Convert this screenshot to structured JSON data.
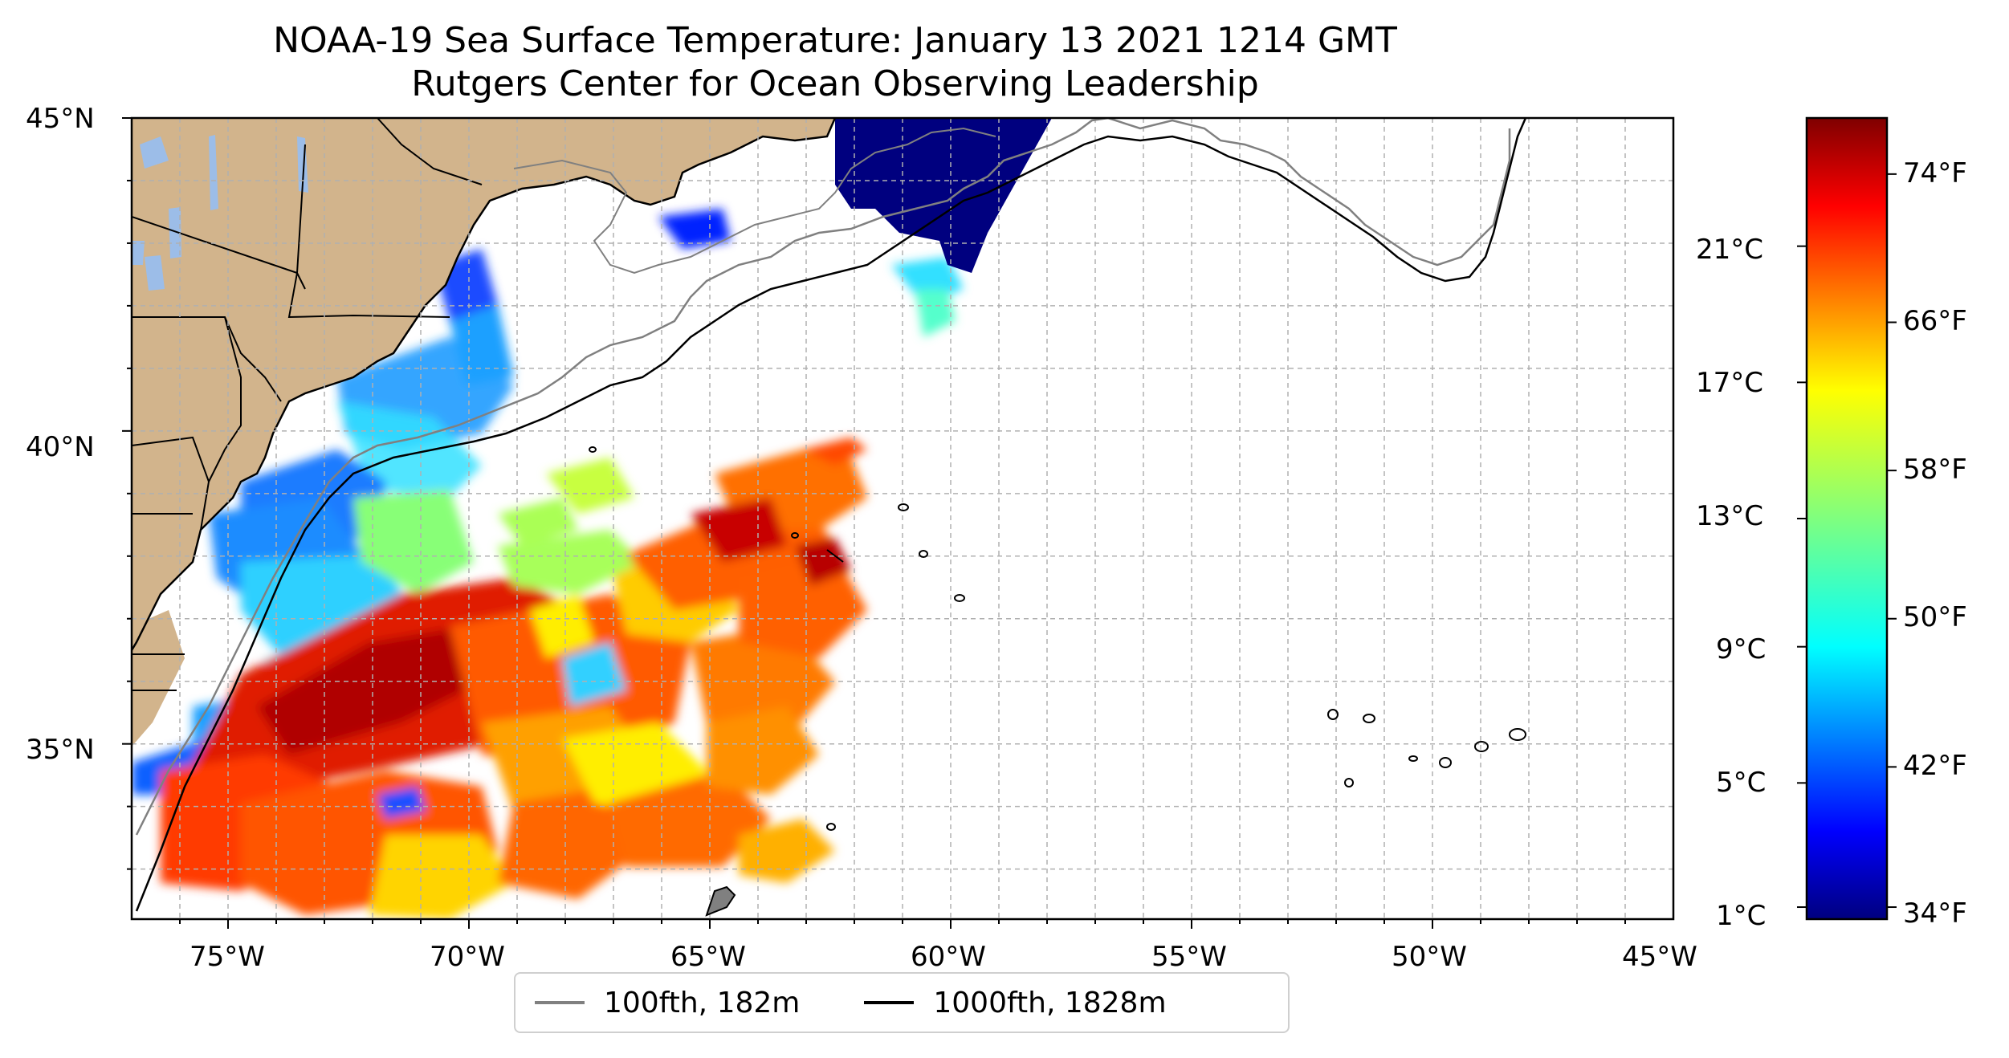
{
  "title": {
    "line1": "NOAA-19 Sea Surface Temperature: January 13 2021 1214 GMT",
    "line2": "Rutgers Center for Ocean Observing Leadership"
  },
  "map": {
    "lat_ticks": [
      "45°N",
      "40°N",
      "35°N"
    ],
    "lon_ticks": [
      "75°W",
      "70°W",
      "65°W",
      "60°W",
      "55°W",
      "50°W",
      "45°W"
    ],
    "lon_range": [
      -77,
      -45
    ],
    "lat_range": [
      32.2,
      45
    ],
    "colors": {
      "land": "#d2b48c",
      "lakes": "#9cbde8",
      "ocean_no_data": "#ffffff",
      "contour_100fth": "#808080",
      "contour_1000fth": "#000000",
      "grid": "#b0b0b0"
    }
  },
  "legend": {
    "item_100": "100fth, 182m",
    "item_1000": "1000fth, 1828m"
  },
  "colorbar": {
    "colormap": "jet",
    "celsius_ticks": [
      "21°C",
      "17°C",
      "13°C",
      "9°C",
      "5°C",
      "1°C"
    ],
    "fahrenheit_ticks": [
      "74°F",
      "66°F",
      "58°F",
      "50°F",
      "42°F",
      "34°F"
    ]
  }
}
